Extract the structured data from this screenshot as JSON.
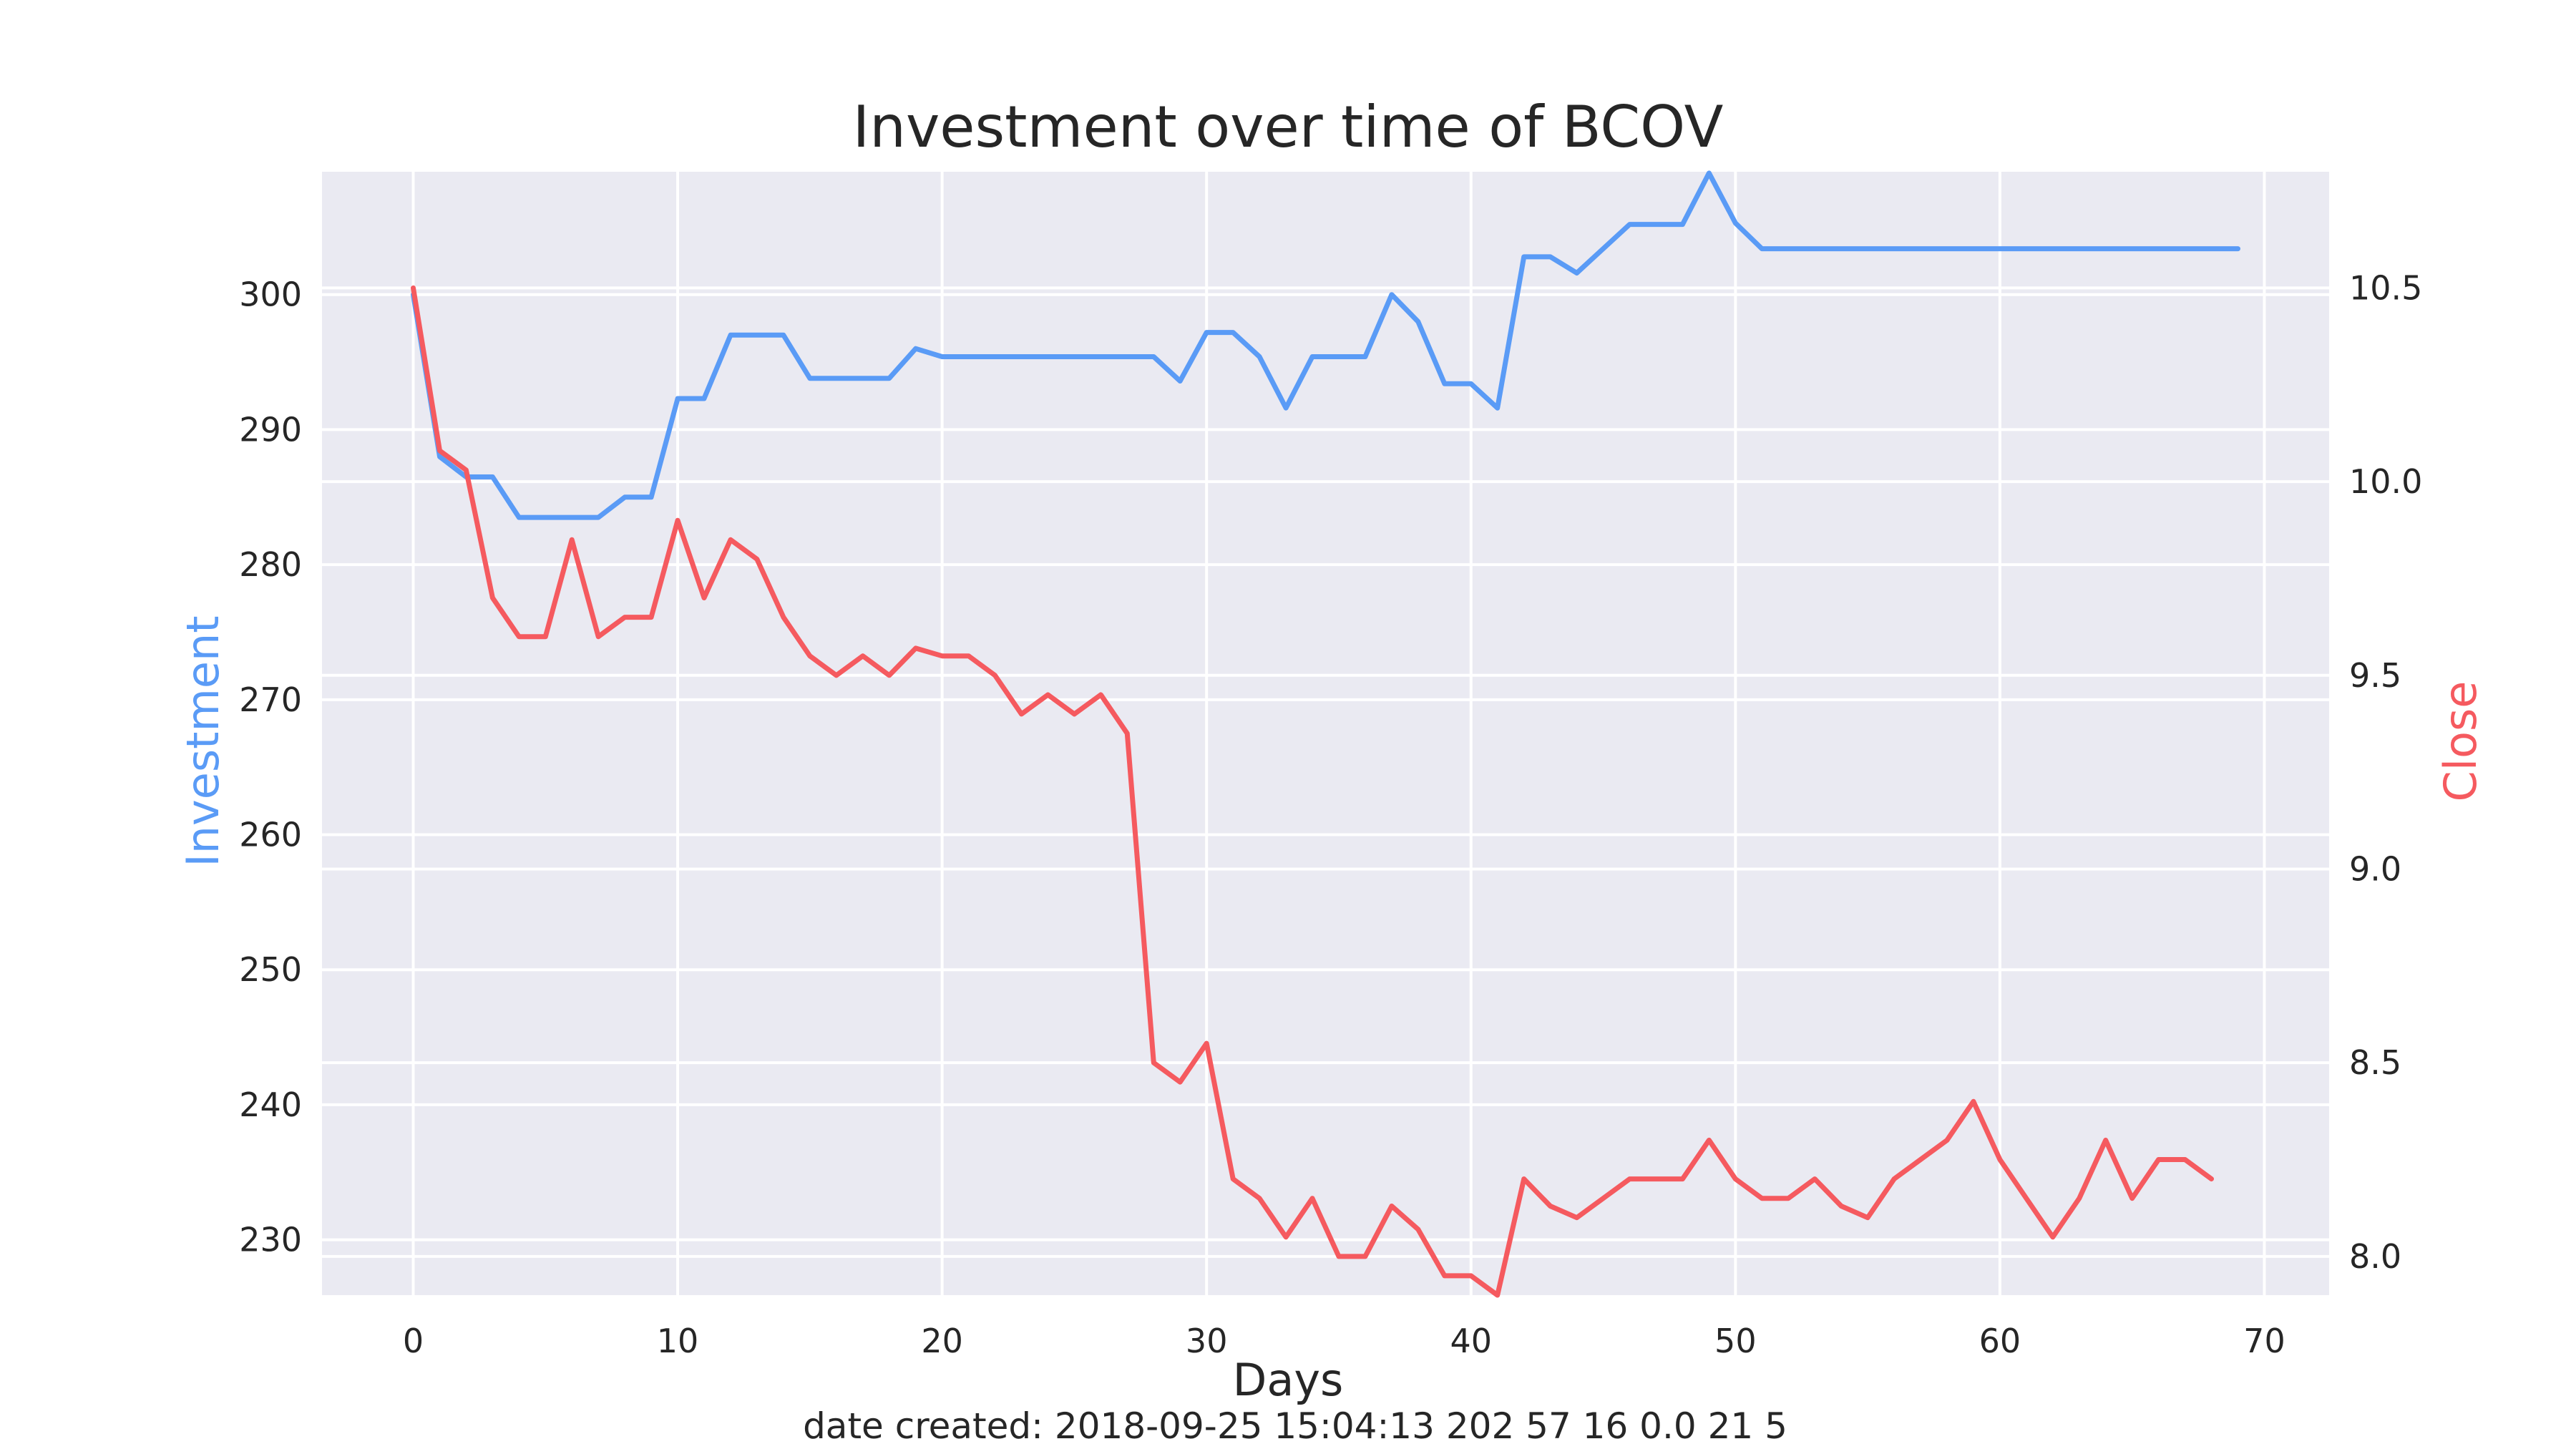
{
  "chart_data": {
    "type": "line",
    "title": "Investment over time of BCOV",
    "xlabel": "Days",
    "ylabel_left": "Investment",
    "ylabel_right": "Close",
    "footer": "date created: 2018-09-25 15:04:13 202 57 16 0.0 21 5",
    "xlim": [
      -3.45,
      72.45
    ],
    "ylim_left": [
      225.9,
      309.1
    ],
    "ylim_right": [
      7.9,
      10.8
    ],
    "x_ticks": [
      "0",
      "10",
      "20",
      "30",
      "40",
      "50",
      "60",
      "70"
    ],
    "y_ticks_left": [
      "230",
      "240",
      "250",
      "260",
      "270",
      "280",
      "290",
      "300"
    ],
    "y_ticks_right": [
      "8.0",
      "8.5",
      "9.0",
      "9.5",
      "10.0",
      "10.5"
    ],
    "grid": true,
    "colors": {
      "investment": "#5a9bf6",
      "close": "#f55a5f",
      "plot_bg": "#eaeaf2",
      "grid": "#ffffff"
    },
    "series": [
      {
        "name": "Investment",
        "axis": "left",
        "x": [
          0,
          1,
          2,
          3,
          4,
          5,
          6,
          7,
          8,
          9,
          10,
          11,
          12,
          13,
          14,
          15,
          16,
          17,
          18,
          19,
          20,
          21,
          22,
          23,
          24,
          25,
          26,
          27,
          28,
          29,
          30,
          31,
          32,
          33,
          34,
          35,
          36,
          37,
          38,
          39,
          40,
          41,
          42,
          43,
          44,
          45,
          46,
          47,
          48,
          49,
          50,
          51,
          52,
          53,
          54,
          55,
          56,
          57,
          58,
          59,
          60,
          61,
          62,
          63,
          64,
          65,
          66,
          67,
          68,
          69
        ],
        "values": [
          300.0,
          288.0,
          286.5,
          286.5,
          283.5,
          283.5,
          283.5,
          283.5,
          285.0,
          285.0,
          292.3,
          292.3,
          297.0,
          297.0,
          297.0,
          293.8,
          293.8,
          293.8,
          293.8,
          296.0,
          295.4,
          295.4,
          295.4,
          295.4,
          295.4,
          295.4,
          295.4,
          295.4,
          295.4,
          293.6,
          297.2,
          297.2,
          295.4,
          291.6,
          295.4,
          295.4,
          295.4,
          300.0,
          298.0,
          293.4,
          293.4,
          291.6,
          302.8,
          302.8,
          301.6,
          303.4,
          305.2,
          305.2,
          305.2,
          309.0,
          305.3,
          303.4,
          303.4,
          303.4,
          303.4,
          303.4,
          303.4,
          303.4,
          303.4,
          303.4,
          303.4,
          303.4,
          303.4,
          303.4,
          303.4,
          303.4,
          303.4,
          303.4,
          303.4,
          303.4
        ]
      },
      {
        "name": "Close",
        "axis": "right",
        "x": [
          0,
          1,
          2,
          3,
          4,
          5,
          6,
          7,
          8,
          9,
          10,
          11,
          12,
          13,
          14,
          15,
          16,
          17,
          18,
          19,
          20,
          21,
          22,
          23,
          24,
          25,
          26,
          27,
          28,
          29,
          30,
          31,
          32,
          33,
          34,
          35,
          36,
          37,
          38,
          39,
          40,
          41,
          42,
          43,
          44,
          45,
          46,
          47,
          48,
          49,
          50,
          51,
          52,
          53,
          54,
          55,
          56,
          57,
          58,
          59,
          60,
          61,
          62,
          63,
          64,
          65,
          66,
          67,
          68
        ],
        "values": [
          10.5,
          10.08,
          10.03,
          9.7,
          9.6,
          9.6,
          9.85,
          9.6,
          9.65,
          9.65,
          9.9,
          9.7,
          9.85,
          9.8,
          9.65,
          9.55,
          9.5,
          9.55,
          9.5,
          9.57,
          9.55,
          9.55,
          9.5,
          9.4,
          9.45,
          9.4,
          9.45,
          9.35,
          8.5,
          8.45,
          8.55,
          8.2,
          8.15,
          8.05,
          8.15,
          8.0,
          8.0,
          8.13,
          8.07,
          7.95,
          7.95,
          7.9,
          8.2,
          8.13,
          8.1,
          8.15,
          8.2,
          8.2,
          8.2,
          8.3,
          8.2,
          8.15,
          8.15,
          8.2,
          8.13,
          8.1,
          8.2,
          8.25,
          8.3,
          8.4,
          8.25,
          8.15,
          8.05,
          8.15,
          8.3,
          8.15,
          8.25,
          8.25,
          8.2
        ]
      }
    ]
  }
}
